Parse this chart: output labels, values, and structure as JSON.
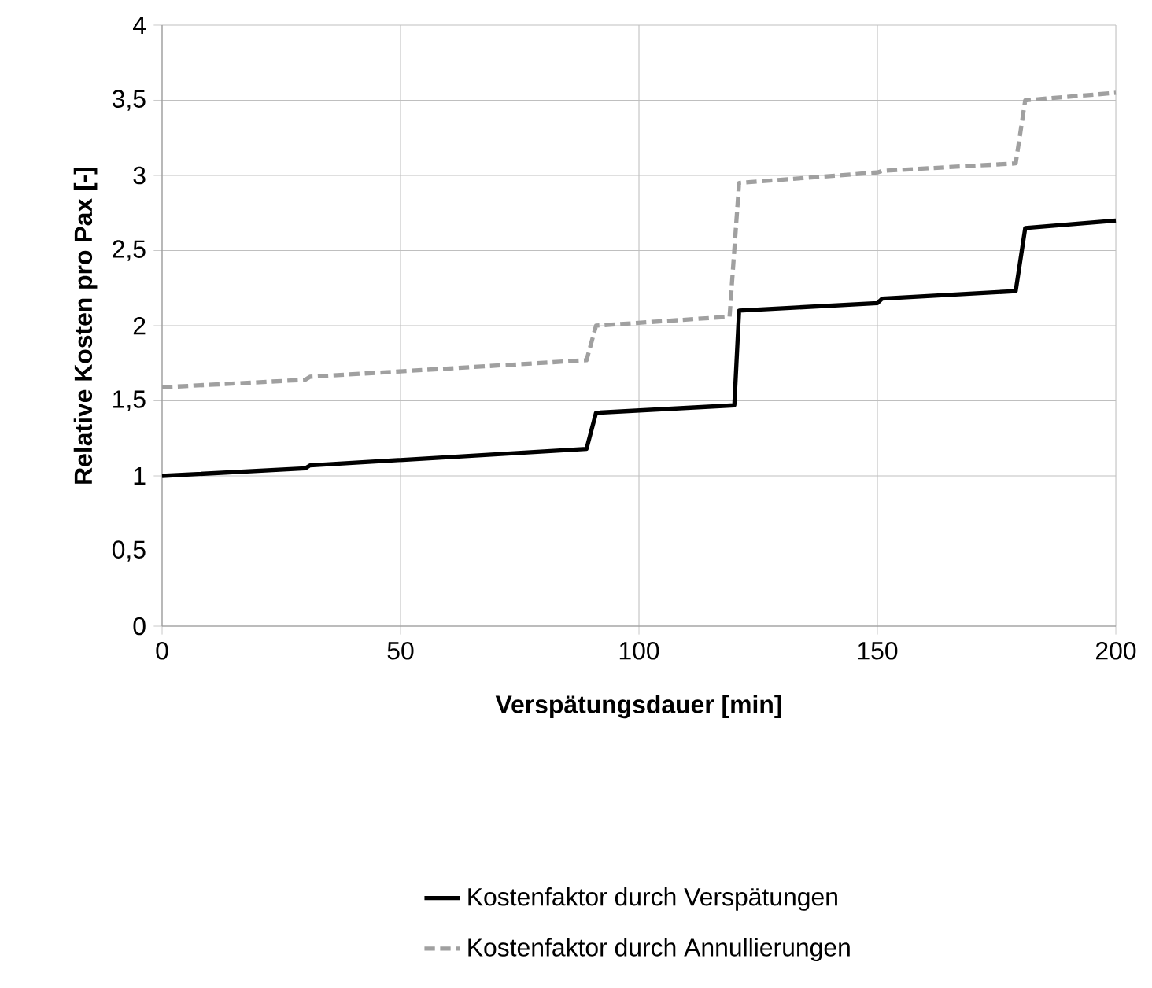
{
  "chart_data": {
    "type": "line",
    "xlabel": "Verspätungsdauer [min]",
    "ylabel": "Relative Kosten pro Pax [-]",
    "xlim": [
      0,
      200
    ],
    "ylim": [
      0,
      4
    ],
    "xticks": [
      0,
      50,
      100,
      150,
      200
    ],
    "yticks": [
      0,
      {
        "value": 0.5,
        "label": "0,5"
      },
      1,
      {
        "value": 1.5,
        "label": "1,5"
      },
      2,
      {
        "value": 2.5,
        "label": "2,5"
      },
      3,
      {
        "value": 3.5,
        "label": "3,5"
      },
      4
    ],
    "grid": true,
    "legend": "bottom",
    "series": [
      {
        "name": "Kostenfaktor durch Verspätungen",
        "color": "#000000",
        "line_style": "solid",
        "x": [
          0,
          30,
          31,
          89,
          91,
          120,
          121,
          150,
          151,
          179,
          181,
          200
        ],
        "values": [
          1.0,
          1.05,
          1.07,
          1.18,
          1.42,
          1.47,
          2.1,
          2.15,
          2.18,
          2.23,
          2.65,
          2.7
        ]
      },
      {
        "name": "Kostenfaktor durch Annullierungen",
        "color": "#a0a0a0",
        "line_style": "dashed",
        "x": [
          0,
          30,
          31,
          89,
          91,
          119,
          121,
          150,
          151,
          179,
          181,
          200
        ],
        "values": [
          1.59,
          1.64,
          1.66,
          1.77,
          2.0,
          2.06,
          2.95,
          3.02,
          3.03,
          3.08,
          3.5,
          3.55
        ]
      }
    ]
  }
}
